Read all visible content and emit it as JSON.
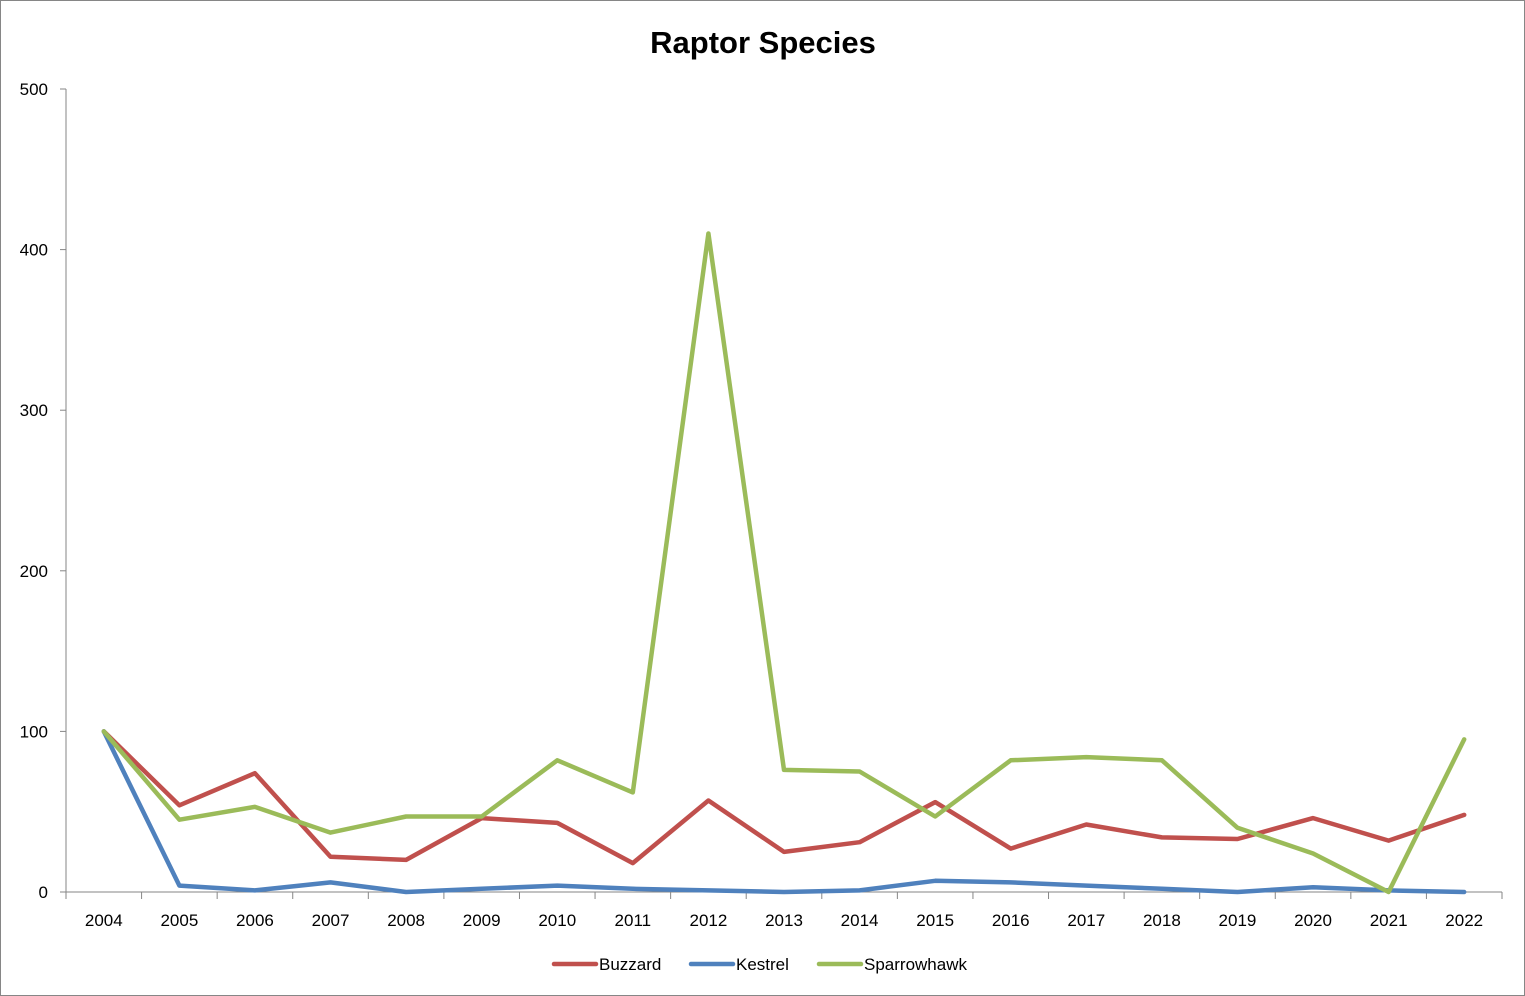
{
  "chart_data": {
    "type": "line",
    "title": "Raptor Species",
    "xlabel": "",
    "ylabel": "",
    "categories": [
      "2004",
      "2005",
      "2006",
      "2007",
      "2008",
      "2009",
      "2010",
      "2011",
      "2012",
      "2013",
      "2014",
      "2015",
      "2016",
      "2017",
      "2018",
      "2019",
      "2020",
      "2021",
      "2022"
    ],
    "ylim": [
      0,
      500
    ],
    "yticks": [
      0,
      100,
      200,
      300,
      400,
      500
    ],
    "grid": false,
    "legend_position": "bottom",
    "series": [
      {
        "name": "Buzzard",
        "color": "#C0504D",
        "values": [
          100,
          54,
          74,
          22,
          20,
          46,
          43,
          18,
          57,
          25,
          31,
          56,
          27,
          42,
          34,
          33,
          46,
          32,
          48
        ]
      },
      {
        "name": "Kestrel",
        "color": "#4F81BD",
        "values": [
          100,
          4,
          1,
          6,
          0,
          2,
          4,
          2,
          1,
          0,
          1,
          7,
          6,
          4,
          2,
          0,
          3,
          1,
          0
        ]
      },
      {
        "name": "Sparrowhawk",
        "color": "#9BBB59",
        "values": [
          100,
          45,
          53,
          37,
          47,
          47,
          82,
          62,
          410,
          76,
          75,
          47,
          82,
          84,
          82,
          40,
          24,
          0,
          95
        ]
      }
    ]
  }
}
